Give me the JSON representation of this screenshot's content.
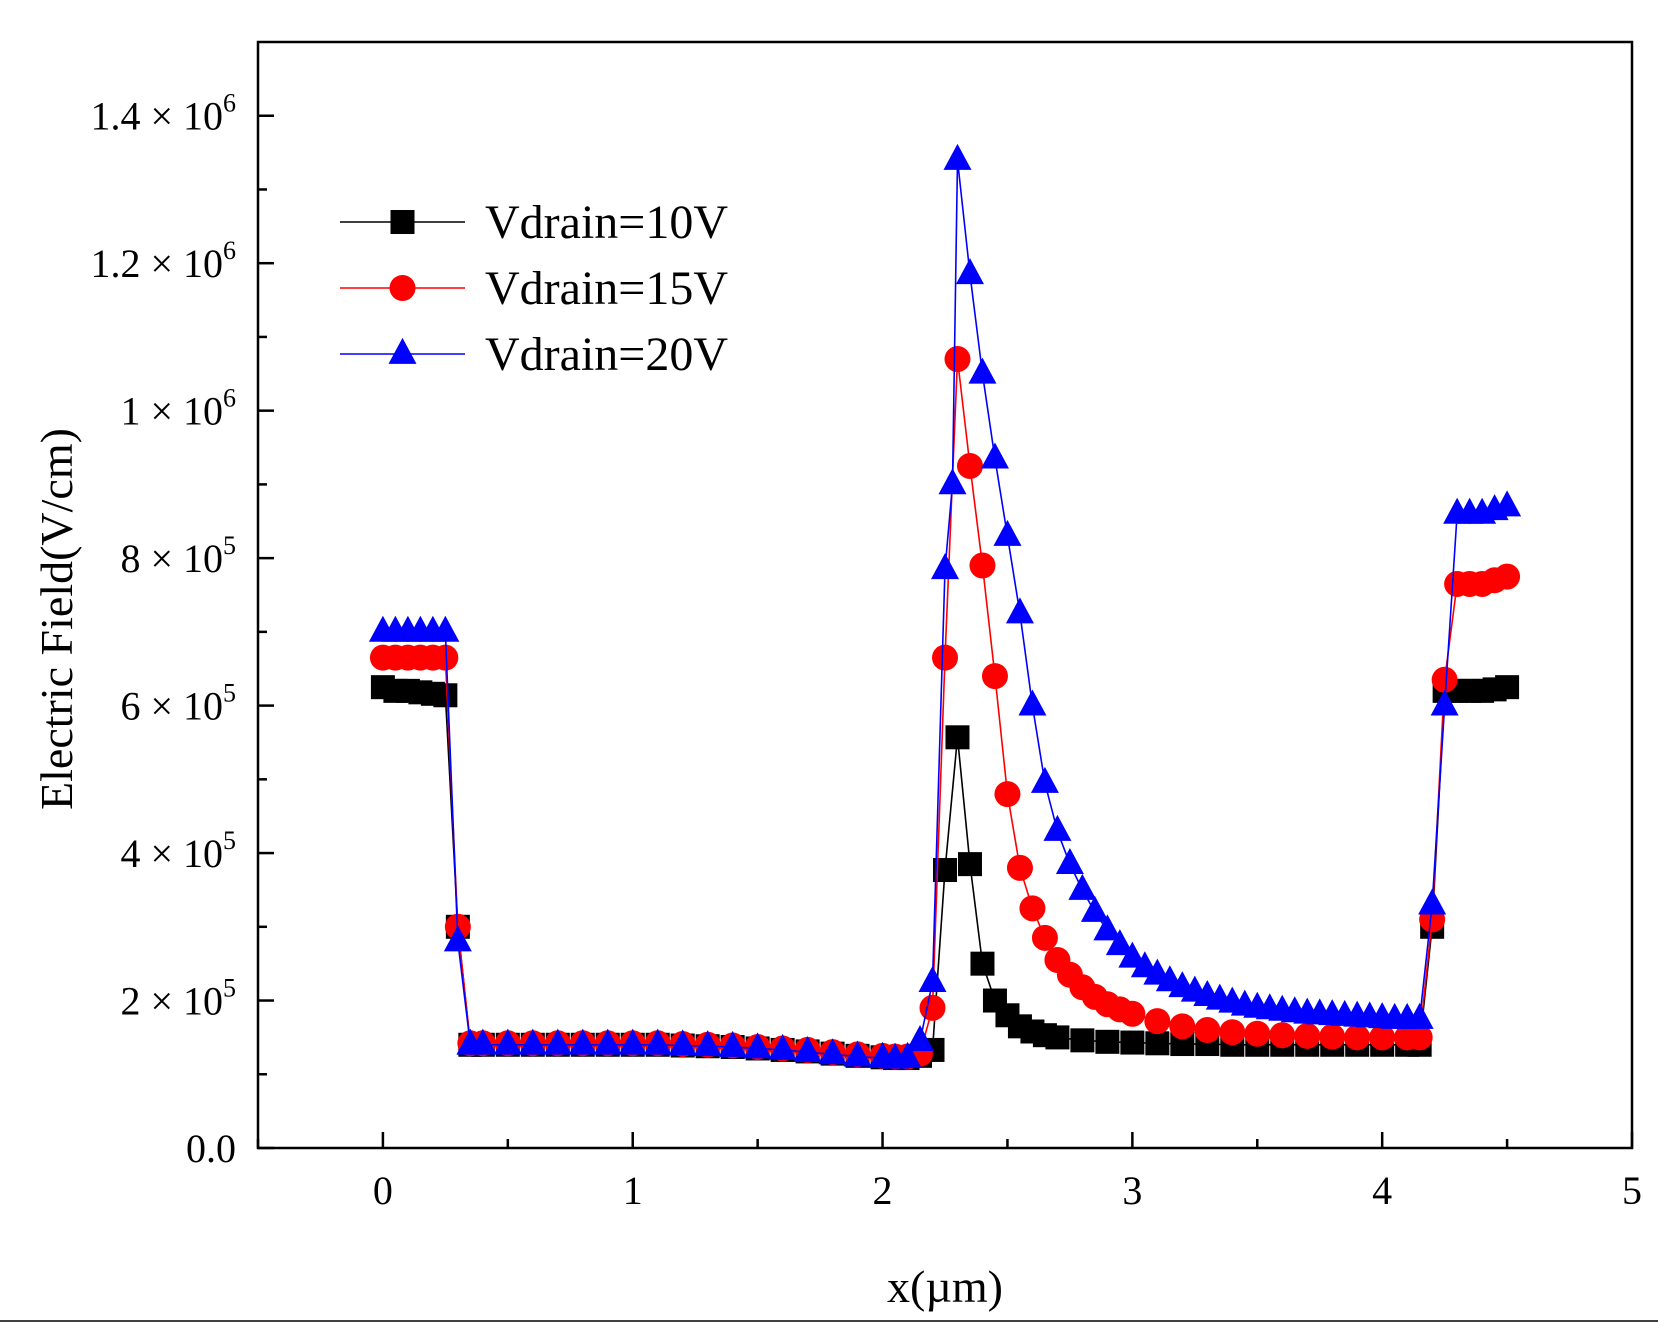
{
  "chart_data": {
    "type": "line",
    "title": "",
    "xlabel": "x(µm)",
    "ylabel": "Electric Field(V/cm)",
    "xlim": [
      -0.5,
      5
    ],
    "ylim": [
      0,
      1500000
    ],
    "grid": false,
    "legend_position": "top-left",
    "x_ticks": [
      {
        "value": 0,
        "label": "0"
      },
      {
        "value": 1,
        "label": "1"
      },
      {
        "value": 2,
        "label": "2"
      },
      {
        "value": 3,
        "label": "3"
      },
      {
        "value": 4,
        "label": "4"
      },
      {
        "value": 5,
        "label": "5"
      }
    ],
    "y_ticks": [
      {
        "value": 0,
        "mantissa": "0.0",
        "exponent": ""
      },
      {
        "value": 200000,
        "mantissa": "2 × 10",
        "exponent": "5"
      },
      {
        "value": 400000,
        "mantissa": "4 × 10",
        "exponent": "5"
      },
      {
        "value": 600000,
        "mantissa": "6 × 10",
        "exponent": "5"
      },
      {
        "value": 800000,
        "mantissa": "8 × 10",
        "exponent": "5"
      },
      {
        "value": 1000000,
        "mantissa": "1 × 10",
        "exponent": "6"
      },
      {
        "value": 1200000,
        "mantissa": "1.2 × 10",
        "exponent": "6"
      },
      {
        "value": 1400000,
        "mantissa": "1.4 × 10",
        "exponent": "6"
      }
    ],
    "series": [
      {
        "name": "Vdrain=10V",
        "color": "#000000",
        "marker": "square",
        "x": [
          0,
          0.05,
          0.1,
          0.15,
          0.2,
          0.25,
          0.3,
          0.35,
          0.4,
          0.5,
          0.6,
          0.7,
          0.8,
          0.9,
          1.0,
          1.1,
          1.2,
          1.3,
          1.4,
          1.5,
          1.6,
          1.7,
          1.8,
          1.9,
          2.0,
          2.05,
          2.1,
          2.15,
          2.2,
          2.25,
          2.3,
          2.35,
          2.4,
          2.45,
          2.5,
          2.55,
          2.6,
          2.65,
          2.7,
          2.8,
          2.9,
          3.0,
          3.1,
          3.2,
          3.3,
          3.4,
          3.5,
          3.6,
          3.7,
          3.8,
          3.9,
          4.0,
          4.1,
          4.15,
          4.2,
          4.25,
          4.3,
          4.35,
          4.4,
          4.45,
          4.5
        ],
        "y": [
          625000,
          620000,
          620000,
          618000,
          616000,
          614000,
          300000,
          140000,
          140000,
          140000,
          140000,
          140000,
          140000,
          140000,
          140000,
          140000,
          139000,
          138000,
          137000,
          135000,
          133000,
          131000,
          128000,
          125000,
          123000,
          122000,
          122000,
          125000,
          133000,
          377000,
          557000,
          385000,
          250000,
          200000,
          180000,
          165000,
          158000,
          153000,
          150000,
          146000,
          144000,
          143000,
          142000,
          141000,
          141000,
          140000,
          140000,
          140000,
          140000,
          140000,
          140000,
          140000,
          140000,
          140000,
          300000,
          620000,
          620000,
          620000,
          620000,
          622000,
          625000
        ]
      },
      {
        "name": "Vdrain=15V",
        "color": "#ff0000",
        "marker": "circle",
        "x": [
          0,
          0.05,
          0.1,
          0.15,
          0.2,
          0.25,
          0.3,
          0.35,
          0.4,
          0.5,
          0.6,
          0.7,
          0.8,
          0.9,
          1.0,
          1.1,
          1.2,
          1.3,
          1.4,
          1.5,
          1.6,
          1.7,
          1.8,
          1.9,
          2.0,
          2.05,
          2.1,
          2.15,
          2.2,
          2.25,
          2.3,
          2.35,
          2.4,
          2.45,
          2.5,
          2.55,
          2.6,
          2.65,
          2.7,
          2.75,
          2.8,
          2.85,
          2.9,
          2.95,
          3.0,
          3.1,
          3.2,
          3.3,
          3.4,
          3.5,
          3.6,
          3.7,
          3.8,
          3.9,
          4.0,
          4.1,
          4.15,
          4.2,
          4.25,
          4.3,
          4.35,
          4.4,
          4.45,
          4.5
        ],
        "y": [
          665000,
          665000,
          665000,
          665000,
          665000,
          665000,
          300000,
          142000,
          142000,
          142000,
          142000,
          142000,
          142000,
          142000,
          142000,
          142000,
          141000,
          140000,
          139000,
          137000,
          135000,
          133000,
          130000,
          127000,
          125000,
          124000,
          124000,
          128000,
          190000,
          665000,
          1070000,
          925000,
          790000,
          640000,
          480000,
          380000,
          325000,
          285000,
          255000,
          235000,
          218000,
          205000,
          195000,
          188000,
          182000,
          172000,
          165000,
          160000,
          157000,
          155000,
          153000,
          152000,
          151000,
          150000,
          150000,
          150000,
          150000,
          310000,
          635000,
          765000,
          765000,
          765000,
          770000,
          775000
        ]
      },
      {
        "name": "Vdrain=20V",
        "color": "#0000ff",
        "marker": "triangle",
        "x": [
          0,
          0.05,
          0.1,
          0.15,
          0.2,
          0.25,
          0.3,
          0.35,
          0.4,
          0.5,
          0.6,
          0.7,
          0.8,
          0.9,
          1.0,
          1.1,
          1.2,
          1.3,
          1.4,
          1.5,
          1.6,
          1.7,
          1.8,
          1.9,
          2.0,
          2.05,
          2.1,
          2.15,
          2.2,
          2.25,
          2.28,
          2.3,
          2.35,
          2.4,
          2.45,
          2.5,
          2.55,
          2.6,
          2.65,
          2.7,
          2.75,
          2.8,
          2.85,
          2.9,
          2.95,
          3.0,
          3.05,
          3.1,
          3.15,
          3.2,
          3.25,
          3.3,
          3.35,
          3.4,
          3.45,
          3.5,
          3.55,
          3.6,
          3.65,
          3.7,
          3.75,
          3.8,
          3.85,
          3.9,
          3.95,
          4.0,
          4.05,
          4.1,
          4.15,
          4.2,
          4.25,
          4.3,
          4.35,
          4.4,
          4.45,
          4.5
        ],
        "y": [
          700000,
          700000,
          700000,
          700000,
          700000,
          700000,
          280000,
          140000,
          140000,
          140000,
          140000,
          140000,
          140000,
          140000,
          140000,
          140000,
          139000,
          138000,
          137000,
          135000,
          133000,
          130000,
          127000,
          124000,
          122000,
          121000,
          122000,
          145000,
          225000,
          785000,
          900000,
          1340000,
          1185000,
          1050000,
          935000,
          830000,
          725000,
          600000,
          495000,
          430000,
          385000,
          350000,
          320000,
          295000,
          275000,
          258000,
          245000,
          235000,
          226000,
          218000,
          212000,
          206000,
          201000,
          197000,
          193000,
          190000,
          188000,
          186000,
          184000,
          182000,
          181000,
          180000,
          179000,
          178000,
          177000,
          176000,
          175000,
          175000,
          175000,
          330000,
          600000,
          860000,
          860000,
          860000,
          865000,
          870000
        ]
      }
    ]
  }
}
